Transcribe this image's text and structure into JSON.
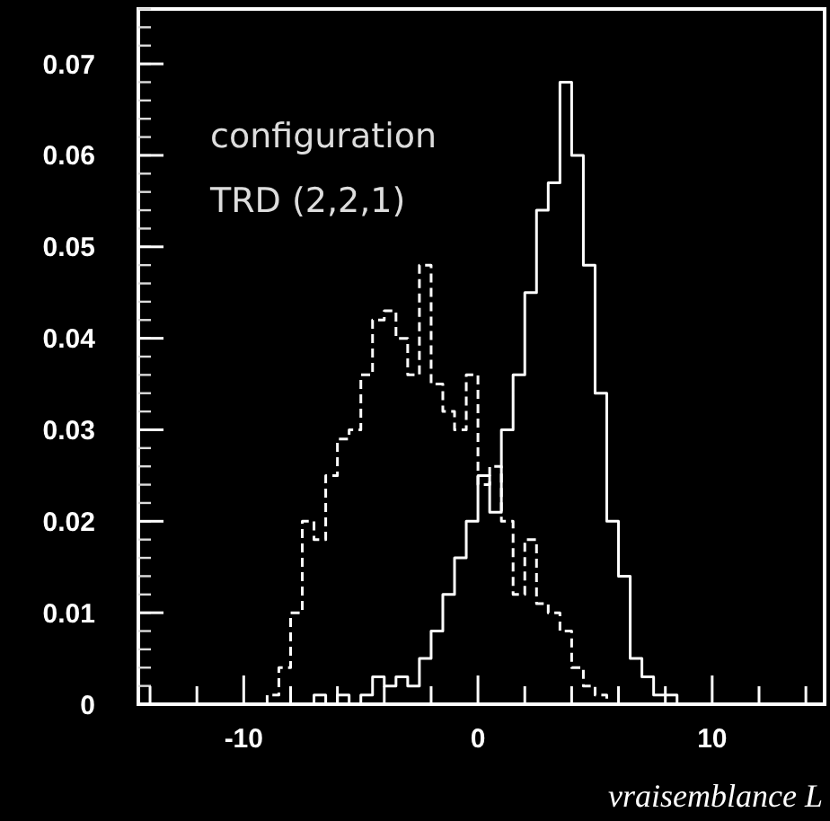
{
  "chart_data": {
    "type": "histogram",
    "xlabel": "vraisemblance L",
    "annotations": [
      "configuration",
      "TRD (2,2,1)"
    ],
    "bins": [
      -9,
      -8.5,
      -8,
      -7.5,
      -7,
      -6.5,
      -6,
      -5.5,
      -5,
      -4.5,
      -4,
      -3.5,
      -3,
      -2.5,
      -2,
      -1.5,
      -1,
      -0.5,
      0,
      0.5,
      1,
      1.5,
      2,
      2.5,
      3,
      3.5,
      4,
      4.5,
      5,
      5.5,
      6,
      6.5,
      7,
      7.5,
      8,
      8.5
    ],
    "series": [
      {
        "color": "#ffffff",
        "line_style": "solid",
        "values": [
          0,
          0,
          0,
          0,
          0.001,
          0,
          0.001,
          0,
          0.001,
          0.003,
          0.002,
          0.003,
          0.002,
          0.005,
          0.008,
          0.012,
          0.016,
          0.02,
          0.025,
          0.021,
          0.03,
          0.036,
          0.045,
          0.054,
          0.057,
          0.068,
          0.06,
          0.048,
          0.034,
          0.02,
          0.014,
          0.005,
          0.003,
          0.001,
          0.001
        ]
      },
      {
        "color": "#ffffff",
        "line_style": "dashed",
        "values": [
          0.001,
          0.004,
          0.01,
          0.02,
          0.018,
          0.025,
          0.029,
          0.03,
          0.036,
          0.042,
          0.043,
          0.04,
          0.036,
          0.048,
          0.035,
          0.032,
          0.03,
          0.036,
          0.024,
          0.026,
          0.02,
          0.012,
          0.018,
          0.011,
          0.01,
          0.008,
          0.004,
          0.002,
          0.001,
          0,
          0,
          0,
          0,
          0,
          0
        ]
      }
    ],
    "xlim": [
      -14.5,
      14.8
    ],
    "xticks": [
      {
        "value": -14,
        "label": null
      },
      {
        "value": -12,
        "label": null
      },
      -10,
      {
        "value": -8,
        "label": null
      },
      {
        "value": -6,
        "label": null
      },
      {
        "value": -4,
        "label": null
      },
      {
        "value": -2,
        "label": null
      },
      0,
      {
        "value": 2,
        "label": null
      },
      {
        "value": 4,
        "label": null
      },
      {
        "value": 6,
        "label": null
      },
      {
        "value": 8,
        "label": null
      },
      10,
      {
        "value": 12,
        "label": null
      },
      {
        "value": 14,
        "label": null
      }
    ],
    "ylim": [
      0,
      0.076
    ],
    "yticks": [
      0,
      0.01,
      0.02,
      0.03,
      0.04,
      0.05,
      0.06,
      0.07
    ],
    "grid": false
  }
}
